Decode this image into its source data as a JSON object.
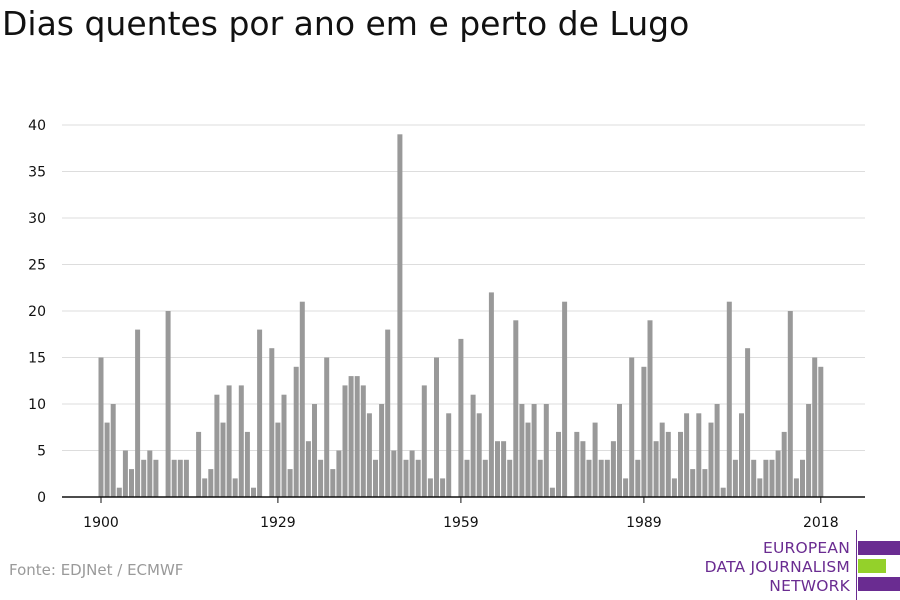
{
  "title": "Dias quentes por ano em e perto de Lugo",
  "source": "Fonte: EDJNet / ECMWF",
  "logo": {
    "lines": [
      "EUROPEAN",
      "DATA JOURNALISM",
      "NETWORK"
    ],
    "colors": {
      "purple": "#6a2c91",
      "green": "#94d12a"
    }
  },
  "colors": {
    "bar": "#999999",
    "grid": "#dddddd",
    "axis": "#111111",
    "text": "#111111"
  },
  "chart_data": {
    "type": "bar",
    "title": "Dias quentes por ano em e perto de Lugo",
    "xlabel": "",
    "ylabel": "",
    "ylim": [
      0,
      40
    ],
    "yticks": [
      0,
      5,
      10,
      15,
      20,
      25,
      30,
      35,
      40
    ],
    "xticks": [
      1900,
      1929,
      1959,
      1989,
      2018
    ],
    "grid": true,
    "x": [
      1900,
      1901,
      1902,
      1903,
      1904,
      1905,
      1906,
      1907,
      1908,
      1909,
      1910,
      1911,
      1912,
      1913,
      1914,
      1915,
      1916,
      1917,
      1918,
      1919,
      1920,
      1921,
      1922,
      1923,
      1924,
      1925,
      1926,
      1927,
      1928,
      1929,
      1930,
      1931,
      1932,
      1933,
      1934,
      1935,
      1936,
      1937,
      1938,
      1939,
      1940,
      1941,
      1942,
      1943,
      1944,
      1945,
      1946,
      1947,
      1948,
      1949,
      1950,
      1951,
      1952,
      1953,
      1954,
      1955,
      1956,
      1957,
      1958,
      1959,
      1960,
      1961,
      1962,
      1963,
      1964,
      1965,
      1966,
      1967,
      1968,
      1969,
      1970,
      1971,
      1972,
      1973,
      1974,
      1975,
      1976,
      1977,
      1978,
      1979,
      1980,
      1981,
      1982,
      1983,
      1984,
      1985,
      1986,
      1987,
      1988,
      1989,
      1990,
      1991,
      1992,
      1993,
      1994,
      1995,
      1996,
      1997,
      1998,
      1999,
      2000,
      2001,
      2002,
      2003,
      2004,
      2005,
      2006,
      2007,
      2008,
      2009,
      2010,
      2011,
      2012,
      2013,
      2014,
      2015,
      2016,
      2017,
      2018
    ],
    "values": [
      15,
      8,
      10,
      1,
      5,
      3,
      18,
      4,
      5,
      4,
      0,
      20,
      4,
      4,
      4,
      0,
      7,
      2,
      3,
      11,
      8,
      12,
      2,
      12,
      7,
      1,
      18,
      0,
      16,
      8,
      11,
      3,
      14,
      21,
      6,
      10,
      4,
      15,
      3,
      5,
      12,
      13,
      13,
      12,
      9,
      4,
      10,
      18,
      5,
      39,
      4,
      5,
      4,
      12,
      2,
      15,
      2,
      9,
      0,
      17,
      4,
      11,
      9,
      4,
      22,
      6,
      6,
      4,
      19,
      10,
      8,
      10,
      4,
      10,
      1,
      7,
      21,
      0,
      7,
      6,
      4,
      8,
      4,
      4,
      6,
      10,
      2,
      15,
      4,
      14,
      19,
      6,
      8,
      7,
      2,
      7,
      9,
      3,
      9,
      3,
      8,
      10,
      1,
      21,
      4,
      9,
      16,
      4,
      2,
      4,
      4,
      5,
      7,
      20,
      2,
      4,
      10,
      15,
      14
    ]
  }
}
